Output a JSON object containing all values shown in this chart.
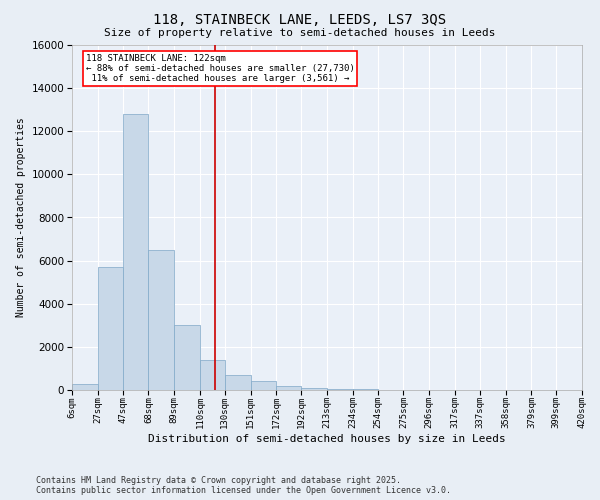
{
  "title_line1": "118, STAINBECK LANE, LEEDS, LS7 3QS",
  "title_line2": "Size of property relative to semi-detached houses in Leeds",
  "xlabel": "Distribution of semi-detached houses by size in Leeds",
  "ylabel": "Number of semi-detached properties",
  "property_label": "118 STAINBECK LANE: 122sqm",
  "pct_smaller": 88,
  "count_smaller": 27730,
  "pct_larger": 11,
  "count_larger": 3561,
  "bin_edges": [
    6,
    27,
    47,
    68,
    89,
    110,
    130,
    151,
    172,
    192,
    213,
    234,
    254,
    275,
    296,
    317,
    337,
    358,
    379,
    399,
    420
  ],
  "bin_labels": [
    "6sqm",
    "27sqm",
    "47sqm",
    "68sqm",
    "89sqm",
    "110sqm",
    "130sqm",
    "151sqm",
    "172sqm",
    "192sqm",
    "213sqm",
    "234sqm",
    "254sqm",
    "275sqm",
    "296sqm",
    "317sqm",
    "337sqm",
    "358sqm",
    "379sqm",
    "399sqm",
    "420sqm"
  ],
  "bar_heights": [
    300,
    5700,
    12800,
    6500,
    3000,
    1400,
    700,
    400,
    200,
    100,
    50,
    30,
    20,
    10,
    5,
    3,
    2,
    1,
    1,
    0
  ],
  "bar_color": "#c8d8e8",
  "bar_edge_color": "#7fa8c8",
  "vline_color": "#cc0000",
  "vline_x": 122,
  "ylim": [
    0,
    16000
  ],
  "yticks": [
    0,
    2000,
    4000,
    6000,
    8000,
    10000,
    12000,
    14000,
    16000
  ],
  "bg_color": "#e8eef5",
  "plot_bg_color": "#eaf0f8",
  "footer_line1": "Contains HM Land Registry data © Crown copyright and database right 2025.",
  "footer_line2": "Contains public sector information licensed under the Open Government Licence v3.0."
}
